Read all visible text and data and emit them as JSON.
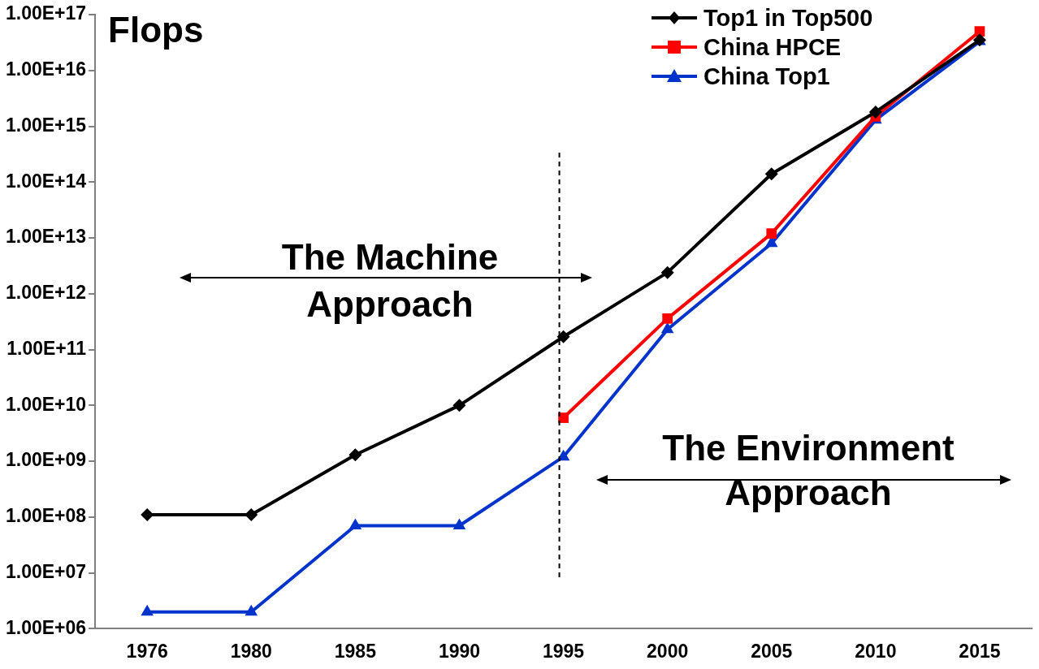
{
  "chart_data": {
    "type": "line",
    "ylabel": "Flops",
    "categories": [
      "1976",
      "1980",
      "1985",
      "1990",
      "1995",
      "2000",
      "2005",
      "2010",
      "2015"
    ],
    "series": [
      {
        "name": "Top1 in Top500",
        "color": "#000000",
        "marker": "diamond",
        "values": [
          110000000.0,
          110000000.0,
          1300000000.0,
          10000000000.0,
          170000000000.0,
          2400000000000.0,
          140000000000000.0,
          1800000000000000.0,
          3.5e+16
        ]
      },
      {
        "name": "China HPCE",
        "color": "#ff0000",
        "marker": "square",
        "values": [
          null,
          null,
          null,
          null,
          6000000000.0,
          360000000000.0,
          12000000000000.0,
          1500000000000000.0,
          5e+16
        ]
      },
      {
        "name": "China Top1",
        "color": "#0033cc",
        "marker": "triangle",
        "values": [
          2000000.0,
          2000000.0,
          70000000.0,
          70000000.0,
          1200000000.0,
          230000000000.0,
          8000000000000.0,
          1300000000000000.0,
          3.3e+16
        ]
      }
    ],
    "log": "y",
    "ylim": [
      1000000.0,
      1e+17
    ],
    "yticks": [
      {
        "value": 1000000.0,
        "label": "1.00E+06"
      },
      {
        "value": 10000000.0,
        "label": "1.00E+07"
      },
      {
        "value": 100000000.0,
        "label": "1.00E+08"
      },
      {
        "value": 1000000000.0,
        "label": "1.00E+09"
      },
      {
        "value": 10000000000.0,
        "label": "1.00E+10"
      },
      {
        "value": 100000000000.0,
        "label": "1.00E+11"
      },
      {
        "value": 1000000000000.0,
        "label": "1.00E+12"
      },
      {
        "value": 10000000000000.0,
        "label": "1.00E+13"
      },
      {
        "value": 100000000000000.0,
        "label": "1.00E+14"
      },
      {
        "value": 1000000000000000.0,
        "label": "1.00E+15"
      },
      {
        "value": 1e+16,
        "label": "1.00E+16"
      },
      {
        "value": 1e+17,
        "label": "1.00E+17"
      }
    ],
    "ref_lines": [
      {
        "axis": "x",
        "value": "1995",
        "color": "#000000",
        "line_style": "dashed"
      }
    ],
    "annotations": [
      "The Machine Approach",
      "The Environment Approach"
    ],
    "legend": "top right",
    "grid": false
  }
}
